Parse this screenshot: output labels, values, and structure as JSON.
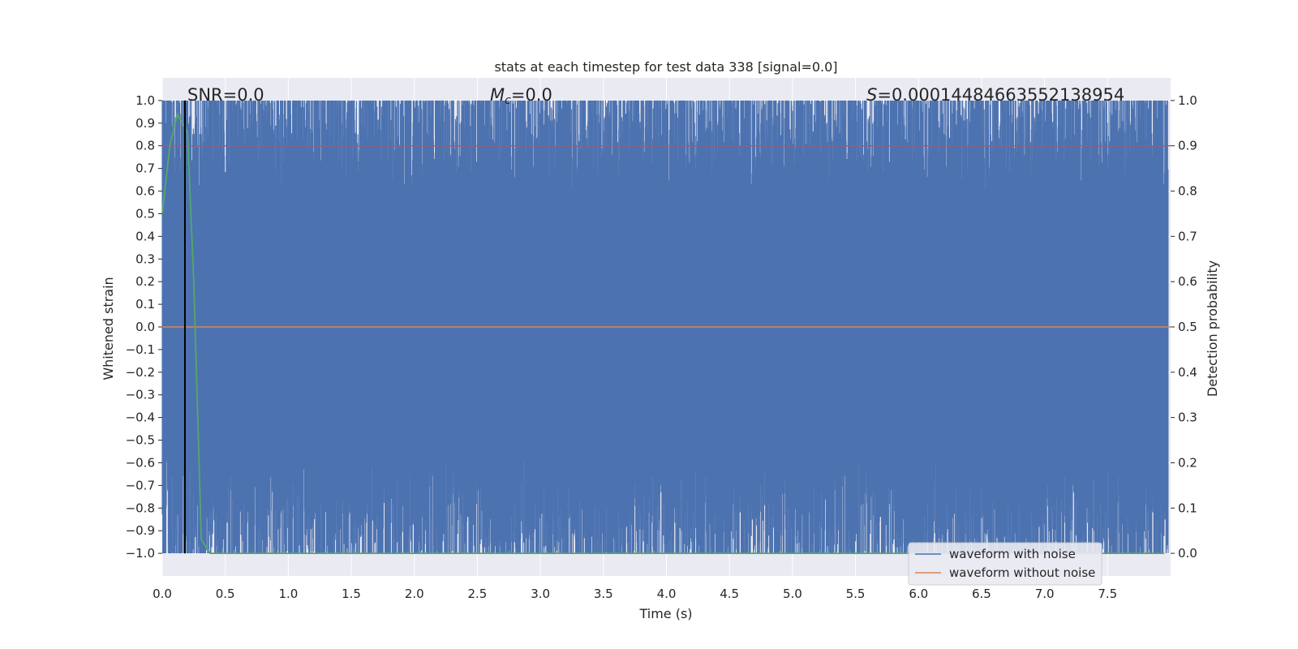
{
  "chart_data": {
    "type": "line",
    "title": "stats at each timestep for test data 338 [signal=0.0]",
    "xlabel": "Time (s)",
    "ylabel_left": "Whitened strain",
    "ylabel_right": "Detection probability",
    "xlim": [
      0.0,
      8.0
    ],
    "ylim_left": [
      -1.1,
      1.1
    ],
    "ylim_right": [
      -0.05,
      1.05
    ],
    "x_ticks": [
      "0.0",
      "0.5",
      "1.0",
      "1.5",
      "2.0",
      "2.5",
      "3.0",
      "3.5",
      "4.0",
      "4.5",
      "5.0",
      "5.5",
      "6.0",
      "6.5",
      "7.0",
      "7.5"
    ],
    "y_left_ticks": [
      "1.0",
      "0.9",
      "0.8",
      "0.7",
      "0.6",
      "0.5",
      "0.4",
      "0.3",
      "0.2",
      "0.1",
      "0.0",
      "−0.1",
      "−0.2",
      "−0.3",
      "−0.4",
      "−0.5",
      "−0.6",
      "−0.7",
      "−0.8",
      "−0.9",
      "−1.0"
    ],
    "y_right_ticks": [
      "1.0",
      "0.9",
      "0.8",
      "0.7",
      "0.6",
      "0.5",
      "0.4",
      "0.3",
      "0.2",
      "0.1",
      "0.0"
    ],
    "grid": true,
    "legend_position": "lower-right",
    "annotations": {
      "snr": "SNR=0.0",
      "mc_symbol": "M",
      "mc_sub": "c",
      "mc_value": "=0.0",
      "s_symbol": "S",
      "s_value": "=0.00014484663552138954"
    },
    "series": [
      {
        "name": "waveform with noise",
        "axis": "left",
        "color": "#4c72b0",
        "note_values": "dense whitened noise, normalized to [-1, 1]"
      },
      {
        "name": "waveform without noise",
        "axis": "left",
        "color": "#dd8452",
        "x": [
          0.0,
          8.0
        ],
        "y": [
          0.0,
          0.0
        ]
      },
      {
        "axis": "right",
        "color": "#55a868",
        "x": [
          0.0,
          0.06,
          0.12,
          0.2,
          0.25,
          0.31,
          0.38,
          7.95
        ],
        "y": [
          0.75,
          0.9,
          0.97,
          0.93,
          0.6,
          0.03,
          0.0,
          0.0
        ]
      },
      {
        "axis": "right",
        "color": "#c44e52",
        "x": [
          0.0,
          8.0
        ],
        "y": [
          0.9,
          0.9
        ]
      }
    ],
    "vline": {
      "x": 0.18,
      "ymin": -1.0,
      "ymax": 1.0,
      "color": "#000000"
    },
    "colors": {
      "axes_bg": "#eaeaf2",
      "grid": "#ffffff"
    }
  }
}
